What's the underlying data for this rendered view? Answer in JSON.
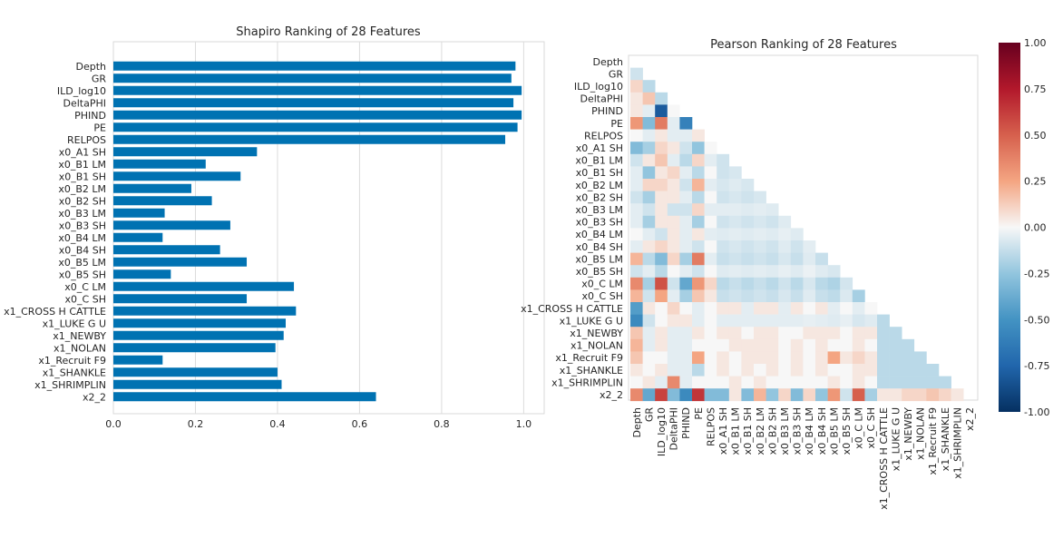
{
  "chart_data": [
    {
      "type": "bar",
      "orientation": "horizontal",
      "title": "Shapiro Ranking of 28 Features",
      "xlabel": "",
      "ylabel": "",
      "xlim": [
        0,
        1.05
      ],
      "xticks": [
        "0.0",
        "0.2",
        "0.4",
        "0.6",
        "0.8",
        "1.0"
      ],
      "grid": true,
      "bar_color": "#0072B2",
      "categories": [
        "Depth",
        "GR",
        "ILD_log10",
        "DeltaPHI",
        "PHIND",
        "PE",
        "RELPOS",
        "x0_A1 SH",
        "x0_B1 LM",
        "x0_B1 SH",
        "x0_B2 LM",
        "x0_B2 SH",
        "x0_B3 LM",
        "x0_B3 SH",
        "x0_B4 LM",
        "x0_B4 SH",
        "x0_B5 LM",
        "x0_B5 SH",
        "x0_C LM",
        "x0_C SH",
        "x1_CROSS H CATTLE",
        "x1_LUKE G U",
        "x1_NEWBY",
        "x1_NOLAN",
        "x1_Recruit F9",
        "x1_SHANKLE",
        "x1_SHRIMPLIN",
        "x2_2"
      ],
      "values": [
        0.98,
        0.97,
        0.995,
        0.975,
        0.995,
        0.985,
        0.955,
        0.35,
        0.225,
        0.31,
        0.19,
        0.24,
        0.125,
        0.285,
        0.12,
        0.26,
        0.325,
        0.14,
        0.44,
        0.325,
        0.445,
        0.42,
        0.415,
        0.395,
        0.12,
        0.4,
        0.41,
        0.64
      ]
    },
    {
      "type": "heatmap",
      "title": "Pearson Ranking of 28 Features",
      "mask": "upper triangle (lower-triangular matrix shown)",
      "categories": [
        "Depth",
        "GR",
        "ILD_log10",
        "DeltaPHI",
        "PHIND",
        "PE",
        "RELPOS",
        "x0_A1 SH",
        "x0_B1 LM",
        "x0_B1 SH",
        "x0_B2 LM",
        "x0_B2 SH",
        "x0_B3 LM",
        "x0_B3 SH",
        "x0_B4 LM",
        "x0_B4 SH",
        "x0_B5 LM",
        "x0_B5 SH",
        "x0_C LM",
        "x0_C SH",
        "x1_CROSS H CATTLE",
        "x1_LUKE G U",
        "x1_NEWBY",
        "x1_NOLAN",
        "x1_Recruit F9",
        "x1_SHANKLE",
        "x1_SHRIMPLIN",
        "x2_2"
      ],
      "rows": [
        [],
        [
          -0.1
        ],
        [
          0.1,
          -0.15
        ],
        [
          0.05,
          0.15,
          -0.15
        ],
        [
          0.05,
          -0.05,
          -0.8,
          0.0
        ],
        [
          0.3,
          -0.3,
          0.4,
          -0.05,
          -0.6
        ],
        [
          0.0,
          -0.05,
          0.05,
          -0.05,
          -0.05,
          0.05
        ],
        [
          -0.3,
          -0.2,
          0.1,
          0.05,
          -0.1,
          -0.25,
          0.0
        ],
        [
          -0.1,
          0.05,
          0.15,
          -0.05,
          -0.15,
          0.1,
          -0.05,
          -0.1
        ],
        [
          -0.05,
          -0.25,
          0.05,
          0.1,
          -0.05,
          -0.15,
          0.0,
          -0.1,
          -0.08
        ],
        [
          -0.05,
          0.1,
          0.1,
          0.05,
          -0.1,
          0.2,
          -0.05,
          -0.08,
          -0.06,
          -0.08
        ],
        [
          -0.1,
          -0.2,
          0.05,
          0.05,
          -0.05,
          -0.15,
          0.0,
          -0.1,
          -0.08,
          -0.1,
          -0.08
        ],
        [
          -0.05,
          -0.1,
          0.05,
          -0.1,
          -0.1,
          0.1,
          -0.05,
          -0.05,
          -0.05,
          -0.06,
          -0.05,
          -0.06
        ],
        [
          -0.05,
          -0.2,
          0.05,
          0.05,
          -0.05,
          -0.2,
          0.0,
          -0.1,
          -0.08,
          -0.1,
          -0.08,
          -0.1,
          -0.06
        ],
        [
          0.0,
          -0.05,
          -0.1,
          0.05,
          -0.05,
          0.05,
          -0.05,
          -0.06,
          -0.05,
          -0.06,
          -0.05,
          -0.06,
          -0.04,
          -0.06
        ],
        [
          -0.05,
          0.05,
          0.1,
          0.05,
          -0.05,
          -0.1,
          0.0,
          -0.1,
          -0.08,
          -0.1,
          -0.08,
          -0.1,
          -0.06,
          -0.1,
          -0.05
        ],
        [
          0.2,
          -0.15,
          -0.3,
          0.1,
          -0.2,
          0.4,
          -0.05,
          -0.12,
          -0.1,
          -0.12,
          -0.1,
          -0.12,
          -0.08,
          -0.12,
          -0.06,
          -0.12
        ],
        [
          -0.1,
          -0.05,
          -0.15,
          0.0,
          -0.05,
          -0.1,
          0.0,
          -0.06,
          -0.05,
          -0.06,
          -0.05,
          -0.06,
          -0.04,
          -0.06,
          -0.03,
          -0.06,
          -0.08
        ],
        [
          0.35,
          -0.2,
          0.55,
          -0.1,
          -0.4,
          0.3,
          0.1,
          -0.15,
          -0.12,
          -0.15,
          -0.12,
          -0.15,
          -0.1,
          -0.15,
          -0.08,
          -0.15,
          -0.18,
          -0.09
        ],
        [
          0.2,
          -0.1,
          0.25,
          -0.05,
          -0.2,
          0.15,
          0.05,
          -0.12,
          -0.1,
          -0.12,
          -0.1,
          -0.12,
          -0.08,
          -0.12,
          -0.06,
          -0.12,
          -0.14,
          -0.07,
          -0.2
        ],
        [
          -0.45,
          0.05,
          0.0,
          0.1,
          0.0,
          -0.05,
          0.0,
          0.05,
          0.05,
          -0.05,
          0.05,
          0.05,
          -0.05,
          0.05,
          0.0,
          0.05,
          -0.05,
          0.0,
          -0.05,
          0.0
        ],
        [
          -0.55,
          -0.1,
          0.0,
          0.05,
          0.05,
          -0.05,
          0.0,
          -0.05,
          -0.05,
          -0.05,
          -0.05,
          -0.05,
          -0.05,
          -0.05,
          -0.04,
          -0.05,
          -0.06,
          -0.04,
          -0.08,
          -0.06,
          -0.15
        ],
        [
          0.15,
          -0.05,
          0.05,
          -0.05,
          -0.05,
          0.05,
          0.0,
          0.05,
          0.05,
          0.0,
          0.05,
          0.05,
          0.0,
          0.0,
          0.05,
          0.05,
          0.05,
          0.0,
          0.05,
          0.05,
          -0.15,
          -0.15
        ],
        [
          0.2,
          -0.05,
          0.05,
          -0.05,
          -0.05,
          0.0,
          0.0,
          0.0,
          0.05,
          0.05,
          0.05,
          0.05,
          0.0,
          0.05,
          0.0,
          0.05,
          0.0,
          0.0,
          0.05,
          0.0,
          -0.15,
          -0.15,
          -0.15
        ],
        [
          0.15,
          0.0,
          0.0,
          -0.05,
          -0.05,
          0.25,
          0.0,
          0.05,
          0.0,
          0.05,
          0.05,
          0.05,
          0.0,
          0.05,
          0.0,
          0.05,
          0.25,
          0.05,
          0.1,
          0.05,
          -0.15,
          -0.15,
          -0.15,
          -0.15
        ],
        [
          0.05,
          0.0,
          0.05,
          -0.05,
          -0.05,
          -0.15,
          0.0,
          0.05,
          0.0,
          0.05,
          0.0,
          0.05,
          0.0,
          0.05,
          0.0,
          0.05,
          0.0,
          0.0,
          0.05,
          0.05,
          -0.15,
          -0.15,
          -0.15,
          -0.15,
          -0.15
        ],
        [
          0.0,
          0.05,
          -0.05,
          0.35,
          -0.05,
          0.0,
          0.0,
          0.0,
          0.05,
          0.0,
          0.05,
          0.0,
          0.0,
          0.0,
          0.0,
          0.0,
          0.05,
          0.0,
          0.05,
          0.0,
          -0.15,
          -0.15,
          -0.15,
          -0.15,
          -0.15,
          -0.15
        ],
        [
          0.35,
          -0.4,
          0.6,
          -0.3,
          -0.55,
          0.65,
          -0.3,
          -0.3,
          0.05,
          -0.3,
          0.2,
          -0.25,
          0.1,
          -0.3,
          0.1,
          -0.25,
          0.3,
          -0.1,
          0.5,
          -0.2,
          0.05,
          0.05,
          0.1,
          0.1,
          0.15,
          0.1,
          0.05
        ]
      ],
      "colorbar": {
        "colormap": "RdBu_r",
        "range": [
          -1,
          1
        ],
        "ticks": [
          "1.00",
          "0.75",
          "0.50",
          "0.25",
          "0.00",
          "-0.25",
          "-0.50",
          "-0.75",
          "-1.00"
        ]
      }
    }
  ]
}
